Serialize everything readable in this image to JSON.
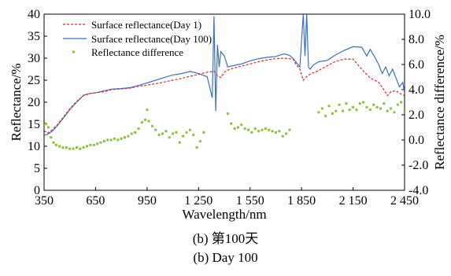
{
  "captions": {
    "cn": "(b) 第100天",
    "en": "(b) Day 100"
  },
  "chart_data": {
    "type": "line",
    "xlabel": "Wavelength/nm",
    "ylabel": "Reflectance/%",
    "y2label": "Reflectance difference/%",
    "xlim": [
      350,
      2450
    ],
    "ylim": [
      0,
      40
    ],
    "y2lim": [
      -4.0,
      10.0
    ],
    "xticks": [
      350,
      650,
      950,
      1250,
      1550,
      1850,
      2150,
      2450
    ],
    "xtick_labels": [
      "350",
      "650",
      "950",
      "1 250",
      "1 550",
      "1 850",
      "2 150",
      "2 450"
    ],
    "yticks": [
      0,
      5,
      10,
      15,
      20,
      25,
      30,
      35,
      40
    ],
    "ytick_labels": [
      "0",
      "5",
      "10",
      "15",
      "20",
      "25",
      "30",
      "35",
      "40"
    ],
    "y2ticks": [
      -4.0,
      -2.0,
      0.0,
      2.0,
      4.0,
      6.0,
      8.0,
      10.0
    ],
    "y2tick_labels": [
      "-4.0",
      "-2.0",
      "0.0",
      "2.0",
      "4.0",
      "6.0",
      "8.0",
      "10.0"
    ],
    "grid": false,
    "legend_position": "top-left",
    "colors": {
      "day1": "#e8251f",
      "day100": "#3a6fc4",
      "difference": "#8dbf3c"
    },
    "series": [
      {
        "name": "Surface reflectance(Day 1)",
        "axis": "left",
        "style": "dashed",
        "x": [
          350,
          370,
          400,
          430,
          460,
          500,
          540,
          580,
          620,
          660,
          700,
          750,
          800,
          850,
          900,
          950,
          1000,
          1050,
          1100,
          1150,
          1200,
          1250,
          1300,
          1340,
          1360,
          1380,
          1400,
          1420,
          1450,
          1500,
          1550,
          1600,
          1650,
          1700,
          1750,
          1800,
          1820,
          1840,
          1860,
          1880,
          1900,
          1950,
          2000,
          2050,
          2100,
          2150,
          2200,
          2250,
          2300,
          2330,
          2350,
          2370,
          2400,
          2430,
          2450
        ],
        "y": [
          13.5,
          13.0,
          13.8,
          15.0,
          16.5,
          18.5,
          20.2,
          21.5,
          22.0,
          22.2,
          22.4,
          22.9,
          23.0,
          23.2,
          23.6,
          23.9,
          24.2,
          24.6,
          25.0,
          25.4,
          25.9,
          26.3,
          26.8,
          27.0,
          26.0,
          25.6,
          26.8,
          27.3,
          27.7,
          28.2,
          28.7,
          29.2,
          29.6,
          29.9,
          30.0,
          29.8,
          28.5,
          27.5,
          25.0,
          25.8,
          26.4,
          27.2,
          28.3,
          29.3,
          29.8,
          29.8,
          27.5,
          25.5,
          24.5,
          22.8,
          21.5,
          22.4,
          22.6,
          21.8,
          21.5
        ]
      },
      {
        "name": "Surface reflectance(Day 100)",
        "axis": "left",
        "style": "solid",
        "x": [
          350,
          370,
          400,
          430,
          460,
          500,
          540,
          580,
          620,
          660,
          700,
          750,
          800,
          850,
          900,
          950,
          1000,
          1050,
          1100,
          1150,
          1200,
          1250,
          1300,
          1330,
          1340,
          1350,
          1360,
          1370,
          1380,
          1400,
          1420,
          1450,
          1500,
          1550,
          1600,
          1650,
          1700,
          1750,
          1780,
          1800,
          1820,
          1840,
          1860,
          1870,
          1880,
          1890,
          1900,
          1920,
          1950,
          2000,
          2050,
          2100,
          2150,
          2200,
          2230,
          2250,
          2280,
          2300,
          2320,
          2340,
          2360,
          2380,
          2400,
          2420,
          2440,
          2450
        ],
        "y": [
          12.5,
          12.7,
          13.5,
          14.8,
          16.3,
          18.3,
          20.0,
          21.6,
          22.0,
          22.2,
          22.6,
          23.0,
          23.1,
          23.3,
          23.8,
          24.4,
          25.0,
          25.6,
          26.2,
          26.5,
          27.0,
          26.5,
          25.8,
          21.0,
          39.5,
          18.0,
          33.0,
          28.0,
          31.5,
          30.5,
          28.0,
          28.3,
          28.7,
          29.4,
          29.9,
          30.2,
          30.4,
          31.0,
          30.6,
          30.0,
          29.0,
          28.0,
          40.0,
          30.5,
          40.0,
          28.0,
          27.5,
          28.5,
          29.2,
          29.5,
          30.8,
          31.8,
          32.6,
          32.5,
          30.5,
          32.0,
          30.0,
          28.5,
          26.5,
          28.0,
          26.0,
          27.5,
          25.5,
          23.5,
          24.5,
          22.0
        ]
      },
      {
        "name": "Reflectance difference",
        "axis": "right",
        "style": "points",
        "x": [
          350,
          360,
          375,
          390,
          405,
          420,
          440,
          460,
          480,
          500,
          520,
          540,
          560,
          580,
          600,
          620,
          640,
          660,
          680,
          700,
          720,
          740,
          760,
          780,
          800,
          820,
          840,
          860,
          880,
          900,
          920,
          940,
          950,
          960,
          980,
          1000,
          1020,
          1040,
          1060,
          1080,
          1100,
          1120,
          1140,
          1160,
          1180,
          1200,
          1220,
          1240,
          1260,
          1280,
          1420,
          1440,
          1460,
          1480,
          1500,
          1520,
          1540,
          1560,
          1580,
          1600,
          1620,
          1640,
          1660,
          1680,
          1700,
          1720,
          1740,
          1760,
          1780,
          1950,
          1970,
          1990,
          2010,
          2030,
          2050,
          2070,
          2090,
          2110,
          2130,
          2150,
          2170,
          2190,
          2210,
          2230,
          2250,
          2270,
          2290,
          2310,
          2330,
          2350,
          2370,
          2390,
          2410,
          2430,
          2450
        ],
        "y": [
          1.2,
          1.3,
          1.0,
          0.2,
          -0.2,
          -0.4,
          -0.5,
          -0.6,
          -0.6,
          -0.7,
          -0.7,
          -0.6,
          -0.7,
          -0.6,
          -0.5,
          -0.4,
          -0.4,
          -0.3,
          -0.2,
          -0.1,
          0.0,
          0.0,
          0.1,
          0.0,
          0.1,
          0.2,
          0.3,
          0.5,
          0.6,
          0.9,
          1.4,
          1.6,
          2.4,
          1.5,
          1.1,
          0.8,
          0.4,
          0.5,
          0.7,
          0.2,
          0.5,
          0.6,
          -0.2,
          0.3,
          0.6,
          0.8,
          0.4,
          -0.6,
          -0.1,
          0.6,
          2.1,
          1.3,
          0.9,
          1.0,
          1.2,
          0.9,
          0.8,
          0.6,
          0.9,
          0.7,
          0.8,
          0.9,
          0.8,
          0.7,
          0.6,
          0.7,
          0.3,
          0.5,
          0.8,
          2.2,
          2.5,
          1.9,
          2.7,
          2.1,
          2.3,
          2.8,
          2.3,
          2.9,
          2.4,
          2.6,
          2.4,
          2.9,
          3.0,
          2.6,
          2.4,
          2.8,
          2.6,
          2.5,
          2.9,
          2.3,
          2.5,
          2.2,
          2.8,
          3.0,
          2.3
        ]
      }
    ]
  }
}
